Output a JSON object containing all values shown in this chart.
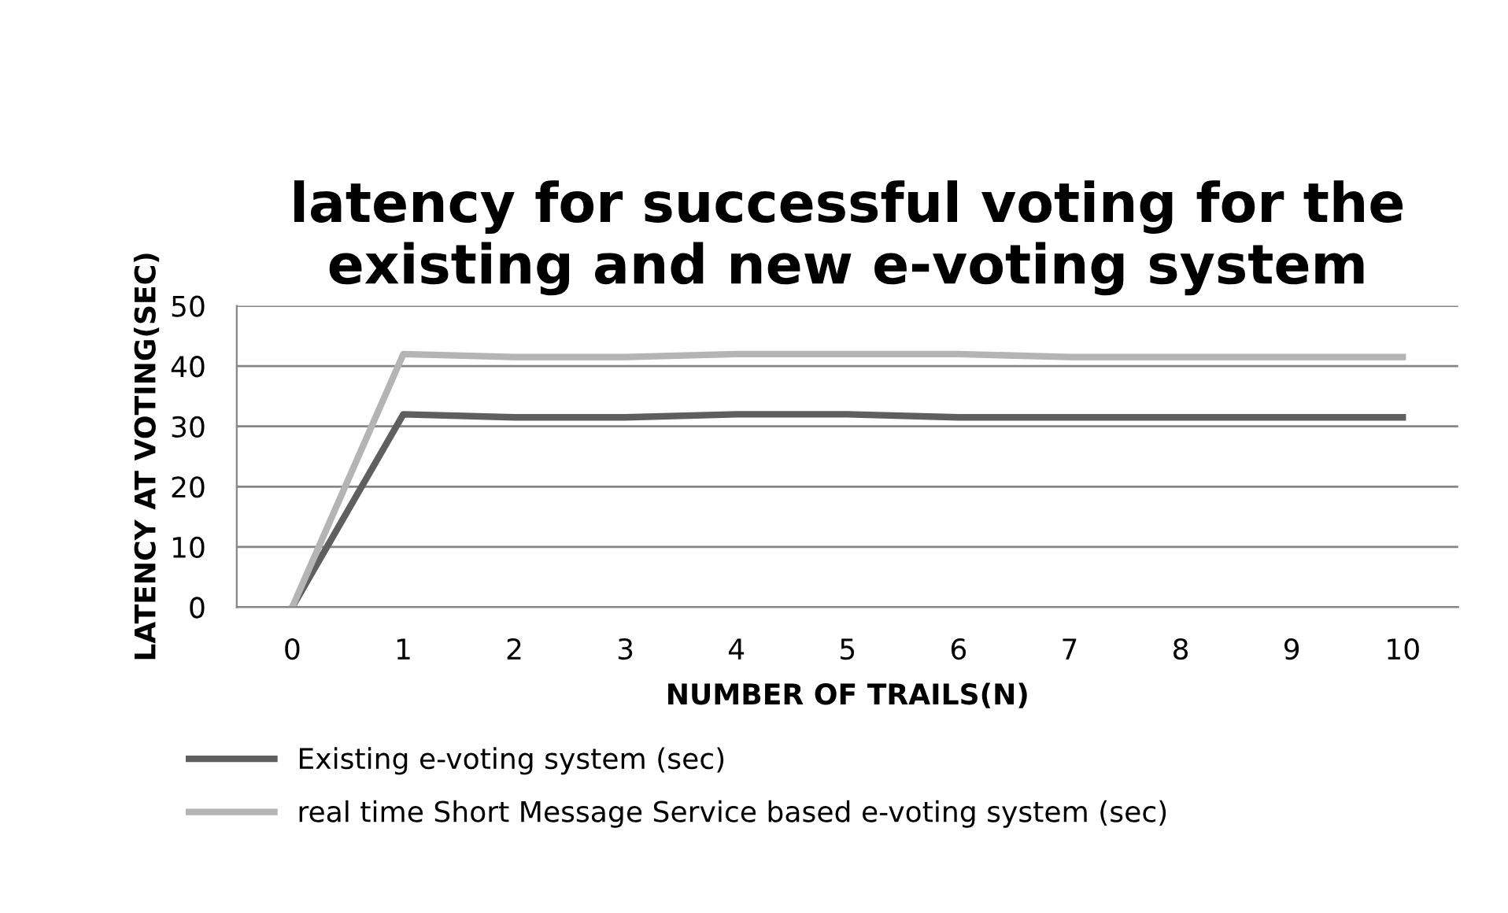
{
  "chart_data": {
    "type": "line",
    "title": "latency for successful voting for the existing and new e-voting system",
    "xlabel": "NUMBER OF TRAILS(N)",
    "ylabel": "LATENCY AT VOTING(SEC)",
    "categories": [
      "0",
      "1",
      "2",
      "3",
      "4",
      "5",
      "6",
      "7",
      "8",
      "9",
      "10"
    ],
    "series": [
      {
        "name": "Existing e-voting system (sec)",
        "color": "#5f5f5f",
        "values": [
          0,
          32,
          31.5,
          31.5,
          32,
          32,
          31.5,
          31.5,
          31.5,
          31.5,
          31.5
        ]
      },
      {
        "name": "real time Short Message Service based e-voting system (sec)",
        "color": "#b4b4b4",
        "values": [
          0,
          42,
          41.5,
          41.5,
          42,
          42,
          42,
          41.5,
          41.5,
          41.5,
          41.5
        ]
      }
    ],
    "ylim": [
      0,
      50
    ],
    "yticks": [
      0,
      10,
      20,
      30,
      40,
      50
    ],
    "grid": "y",
    "legend": "bottom",
    "marker": "none",
    "line_style": "solid"
  }
}
